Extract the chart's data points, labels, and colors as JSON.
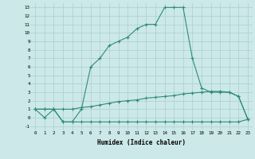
{
  "xlabel": "Humidex (Indice chaleur)",
  "ylabel": "",
  "background_color": "#cce8e8",
  "line_color": "#2e8b7a",
  "grid_color": "#aacfcf",
  "series": {
    "line1_x": [
      0,
      1,
      2,
      3,
      4,
      5,
      6,
      7,
      8,
      9,
      10,
      11,
      12,
      13,
      14,
      15,
      16,
      17,
      18,
      19,
      20,
      21,
      22,
      23
    ],
    "line1_y": [
      1,
      0,
      1,
      -0.5,
      -0.5,
      1,
      6,
      7,
      8.5,
      9,
      9.5,
      10.5,
      11,
      11,
      13,
      13,
      13,
      7,
      3.5,
      3,
      3,
      3,
      2.5,
      -0.2
    ],
    "line2_x": [
      0,
      1,
      2,
      3,
      4,
      5,
      6,
      7,
      8,
      9,
      10,
      11,
      12,
      13,
      14,
      15,
      16,
      17,
      18,
      19,
      20,
      21,
      22,
      23
    ],
    "line2_y": [
      1,
      1,
      1,
      1,
      1,
      1.2,
      1.3,
      1.5,
      1.7,
      1.9,
      2.0,
      2.1,
      2.3,
      2.4,
      2.5,
      2.6,
      2.8,
      2.9,
      3.0,
      3.1,
      3.1,
      3.0,
      2.5,
      -0.2
    ],
    "line3_x": [
      0,
      1,
      2,
      3,
      4,
      5,
      6,
      7,
      8,
      9,
      10,
      11,
      12,
      13,
      14,
      15,
      16,
      17,
      18,
      19,
      20,
      21,
      22,
      23
    ],
    "line3_y": [
      1,
      1,
      1,
      -0.5,
      -0.5,
      -0.5,
      -0.5,
      -0.5,
      -0.5,
      -0.5,
      -0.5,
      -0.5,
      -0.5,
      -0.5,
      -0.5,
      -0.5,
      -0.5,
      -0.5,
      -0.5,
      -0.5,
      -0.5,
      -0.5,
      -0.5,
      -0.2
    ]
  },
  "xlim": [
    -0.5,
    23.5
  ],
  "ylim": [
    -1.5,
    13.5
  ],
  "yticks": [
    -1,
    0,
    1,
    2,
    3,
    4,
    5,
    6,
    7,
    8,
    9,
    10,
    11,
    12,
    13
  ],
  "xticks": [
    0,
    1,
    2,
    3,
    4,
    5,
    6,
    7,
    8,
    9,
    10,
    11,
    12,
    13,
    14,
    15,
    16,
    17,
    18,
    19,
    20,
    21,
    22,
    23
  ]
}
